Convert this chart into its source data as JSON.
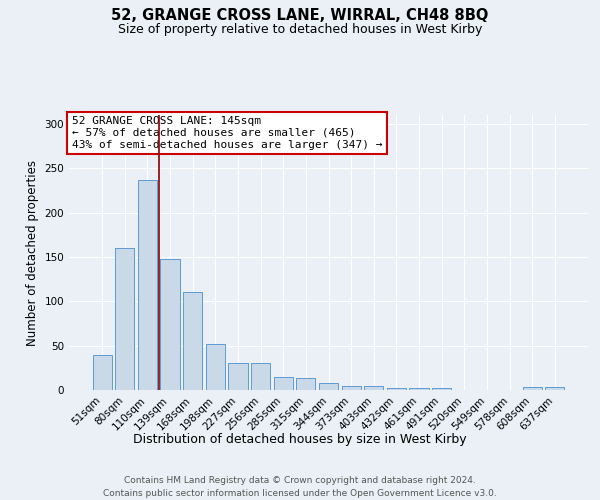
{
  "title1": "52, GRANGE CROSS LANE, WIRRAL, CH48 8BQ",
  "title2": "Size of property relative to detached houses in West Kirby",
  "xlabel": "Distribution of detached houses by size in West Kirby",
  "ylabel": "Number of detached properties",
  "categories": [
    "51sqm",
    "80sqm",
    "110sqm",
    "139sqm",
    "168sqm",
    "198sqm",
    "227sqm",
    "256sqm",
    "285sqm",
    "315sqm",
    "344sqm",
    "373sqm",
    "403sqm",
    "432sqm",
    "461sqm",
    "491sqm",
    "520sqm",
    "549sqm",
    "578sqm",
    "608sqm",
    "637sqm"
  ],
  "values": [
    40,
    160,
    237,
    148,
    110,
    52,
    31,
    31,
    15,
    13,
    8,
    5,
    4,
    2,
    2,
    2,
    0,
    0,
    0,
    3,
    3
  ],
  "bar_color": "#c9d9e8",
  "bar_edge_color": "#5b9bd5",
  "vline_x": 2.5,
  "vline_color": "#8b0000",
  "annotation_line1": "52 GRANGE CROSS LANE: 145sqm",
  "annotation_line2": "← 57% of detached houses are smaller (465)",
  "annotation_line3": "43% of semi-detached houses are larger (347) →",
  "annotation_box_edge_color": "#cc0000",
  "ylim": [
    0,
    310
  ],
  "yticks": [
    0,
    50,
    100,
    150,
    200,
    250,
    300
  ],
  "bg_color": "#eaf0f6",
  "footer1": "Contains HM Land Registry data © Crown copyright and database right 2024.",
  "footer2": "Contains public sector information licensed under the Open Government Licence v3.0.",
  "title_fontsize": 10.5,
  "subtitle_fontsize": 9,
  "ylabel_fontsize": 8.5,
  "xlabel_fontsize": 9,
  "tick_fontsize": 7.5,
  "annotation_fontsize": 8,
  "footer_fontsize": 6.5
}
